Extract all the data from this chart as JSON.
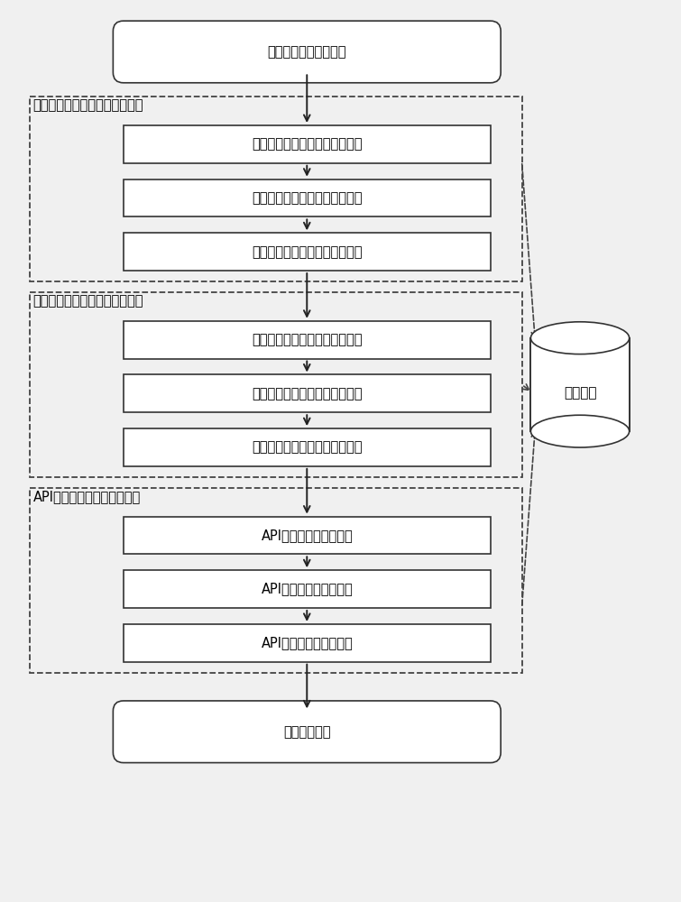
{
  "bg_color": "#f0f0f0",
  "box_fill": "#ffffff",
  "box_edge": "#333333",
  "dashed_edge": "#444444",
  "arrow_color": "#222222",
  "font_size_box": 10.5,
  "font_size_section": 10.5,
  "font_size_db": 11,
  "start_text": "训练阶段样本数据输入",
  "end_text": "训练阶段结束",
  "section1_label": "业务抽象行为判定规则自动生成",
  "section2_label": "基本抽象行为判定规则自动生成",
  "section3_label": "API调用层判定规则自动生成",
  "db_text": "检测规则",
  "box_texts": [
    "独立业务抽象行为判定规则生成",
    "敏感业务抽象行为判定规则生成",
    "可疑业务抽象行为判定规则生成",
    "独立基本抽象行为判定规则生成",
    "敏感基本抽象行为判定规则生成",
    "可疑基本抽象行为判定规则生成",
    "API调用层独立规则生成",
    "API调用层敏感规则生成",
    "API调用层可疑规则生成"
  ]
}
